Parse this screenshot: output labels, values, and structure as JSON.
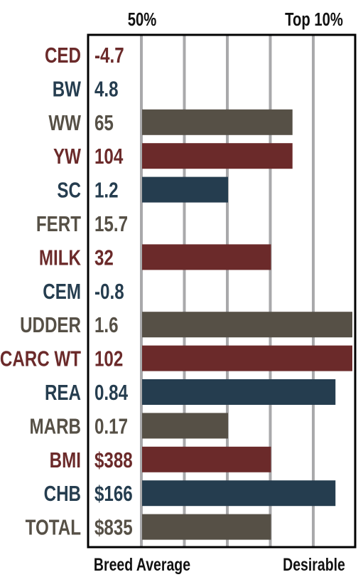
{
  "colors": {
    "red": "#6b2a2a",
    "blue": "#253d4f",
    "gray": "#565046",
    "gridline": "#a9a9ab",
    "border": "#000000"
  },
  "chart_data": {
    "type": "bar",
    "orientation": "horizontal",
    "top_labels": {
      "left": "50%",
      "right": "Top 10%"
    },
    "bottom_labels": {
      "left": "Breed Average",
      "right": "Desirable"
    },
    "grid": true,
    "rows": [
      {
        "trait": "CED",
        "epd": "-4.7",
        "bar": 0,
        "color": "red"
      },
      {
        "trait": "BW",
        "epd": "4.8",
        "bar": 0,
        "color": "blue"
      },
      {
        "trait": "WW",
        "epd": "65",
        "bar": 3.5,
        "color": "gray"
      },
      {
        "trait": "YW",
        "epd": "104",
        "bar": 3.5,
        "color": "red"
      },
      {
        "trait": "SC",
        "epd": "1.2",
        "bar": 2.0,
        "color": "blue"
      },
      {
        "trait": "FERT",
        "epd": "15.7",
        "bar": 0,
        "color": "gray"
      },
      {
        "trait": "MILK",
        "epd": "32",
        "bar": 3.0,
        "color": "red"
      },
      {
        "trait": "CEM",
        "epd": "-0.8",
        "bar": 0,
        "color": "blue"
      },
      {
        "trait": "UDDER",
        "epd": "1.6",
        "bar": 4.9,
        "color": "gray"
      },
      {
        "trait": "CARC WT",
        "epd": "102",
        "bar": 4.9,
        "color": "red"
      },
      {
        "trait": "REA",
        "epd": "0.84",
        "bar": 4.5,
        "color": "blue"
      },
      {
        "trait": "MARB",
        "epd": "0.17",
        "bar": 2.0,
        "color": "gray"
      },
      {
        "trait": "BMI",
        "epd": "$388",
        "bar": 3.0,
        "color": "red"
      },
      {
        "trait": "CHB",
        "epd": "$166",
        "bar": 4.5,
        "color": "blue"
      },
      {
        "trait": "TOTAL",
        "epd": "$835",
        "bar": 3.0,
        "color": "gray"
      }
    ]
  }
}
